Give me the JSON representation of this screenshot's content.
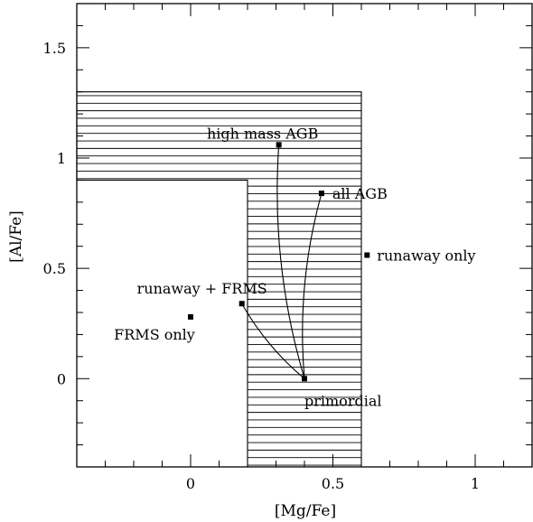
{
  "chart_data": {
    "type": "scatter",
    "xlabel": "[Mg/Fe]",
    "ylabel": "[Al/Fe]",
    "xlim": [
      -0.4,
      1.2
    ],
    "ylim": [
      -0.4,
      1.7
    ],
    "x_ticks": [
      {
        "value": 0,
        "label": "0"
      },
      {
        "value": 0.5,
        "label": "0.5"
      },
      {
        "value": 1,
        "label": "1"
      }
    ],
    "y_ticks": [
      {
        "value": 0,
        "label": "0"
      },
      {
        "value": 0.5,
        "label": "0.5"
      },
      {
        "value": 1,
        "label": "1"
      },
      {
        "value": 1.5,
        "label": "1.5"
      }
    ],
    "grid": false,
    "hatched_region": {
      "polygon": [
        [
          -0.4,
          1.3
        ],
        [
          0.6,
          1.3
        ],
        [
          0.6,
          -0.4
        ],
        [
          0.2,
          -0.4
        ],
        [
          0.2,
          0.9
        ],
        [
          -0.4,
          0.9
        ]
      ],
      "pattern": "horizontal-lines"
    },
    "points": [
      {
        "id": "primordial",
        "label": "primordial",
        "x": 0.4,
        "y": 0.0
      },
      {
        "id": "high-mass-agb",
        "label": "high mass AGB",
        "x": 0.31,
        "y": 1.06
      },
      {
        "id": "all-agb",
        "label": "all AGB",
        "x": 0.46,
        "y": 0.84
      },
      {
        "id": "runaway-only",
        "label": "runaway only",
        "x": 0.62,
        "y": 0.56
      },
      {
        "id": "runaway-frms",
        "label": "runaway + FRMS",
        "x": 0.18,
        "y": 0.34
      },
      {
        "id": "frms-only",
        "label": "FRMS only",
        "x": 0.0,
        "y": 0.28
      }
    ],
    "curves": [
      {
        "id": "primordial-to-high-mass-agb",
        "from": "primordial",
        "to": "high-mass-agb"
      },
      {
        "id": "primordial-to-all-agb",
        "from": "primordial",
        "to": "all-agb"
      },
      {
        "id": "primordial-to-runaway-frms",
        "from": "primordial",
        "to": "runaway-frms"
      }
    ]
  }
}
